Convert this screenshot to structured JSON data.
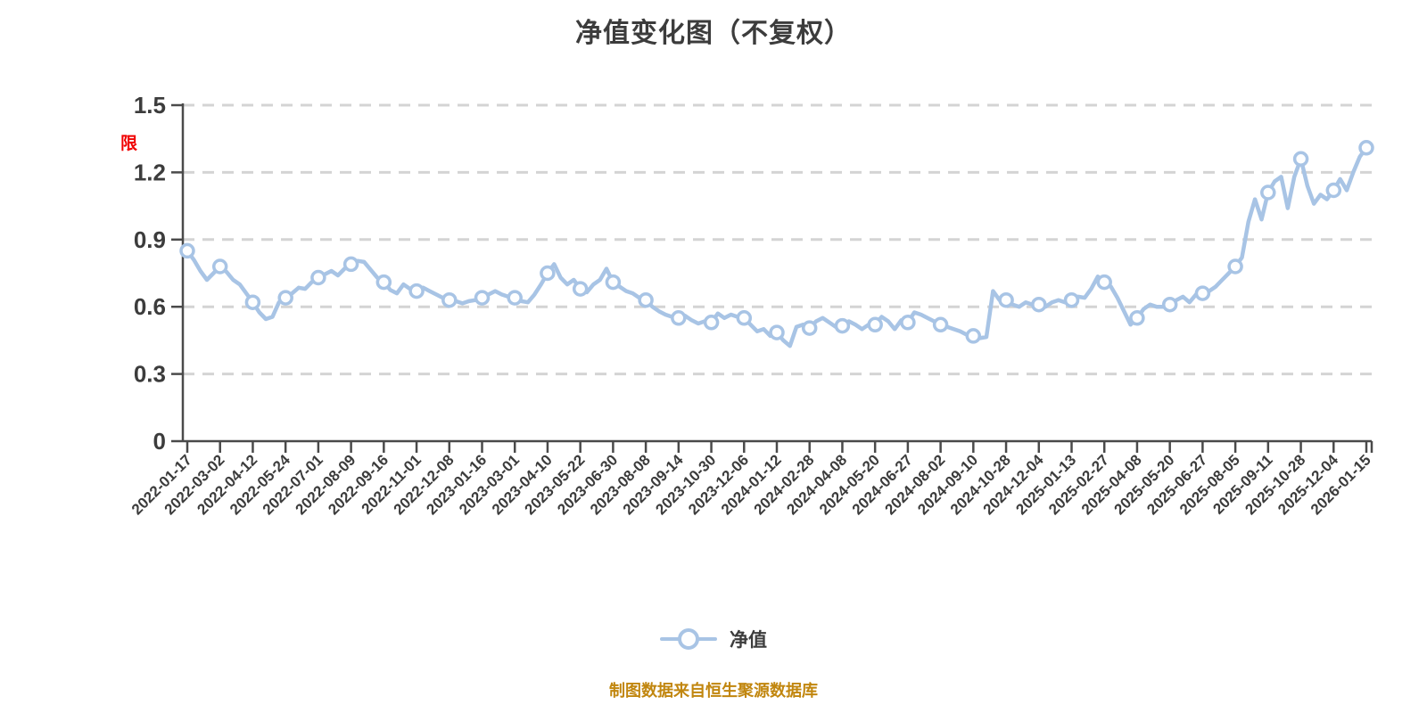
{
  "page": {
    "title": "净值变化图（不复权）",
    "red_annotation": "限",
    "footer_note": "制图数据来自恒生聚源数据库"
  },
  "legend": {
    "items": [
      {
        "label": "净值"
      }
    ]
  },
  "colors": {
    "line": "#a8c4e5",
    "marker_fill": "#fdfeff",
    "grid": "#d4d4d4",
    "axis": "#4a4a4a",
    "text": "#3c3c3c",
    "footer": "#c1860e",
    "annotation": "#f00000",
    "background": "#ffffff"
  },
  "chart_data": {
    "type": "line",
    "title": "净值变化图（不复权）",
    "series_name": "净值",
    "legend_position": "bottom",
    "grid": "horizontal-dashed",
    "x_label_rotation": -45,
    "ylim": [
      0,
      1.5
    ],
    "y_ticks": [
      0,
      0.3,
      0.6,
      0.9,
      1.2,
      1.5
    ],
    "y_tick_labels": [
      "0",
      "0.3",
      "0.6",
      "0.9",
      "1.2",
      "1.5"
    ],
    "x_tick_labels": [
      "2022-01-17",
      "2022-03-02",
      "2022-04-12",
      "2022-05-24",
      "2022-07-01",
      "2022-08-09",
      "2022-09-16",
      "2022-11-01",
      "2022-12-08",
      "2023-01-16",
      "2023-03-01",
      "2023-04-10",
      "2023-05-22",
      "2023-06-30",
      "2023-08-08",
      "2023-09-14",
      "2023-10-30",
      "2023-12-06",
      "2024-01-12",
      "2024-02-28",
      "2024-04-08",
      "2024-05-20",
      "2024-06-27",
      "2024-08-02",
      "2024-09-10",
      "2024-10-28",
      "2024-12-04",
      "2025-01-13",
      "2025-02-27",
      "2025-04-08",
      "2025-05-20",
      "2025-06-27",
      "2025-08-05",
      "2025-09-11",
      "2025-10-28",
      "2025-12-04",
      "2026-01-15"
    ],
    "marker_every": 5,
    "values": [
      0.85,
      0.81,
      0.76,
      0.72,
      0.75,
      0.78,
      0.755,
      0.72,
      0.7,
      0.66,
      0.62,
      0.575,
      0.545,
      0.555,
      0.62,
      0.64,
      0.66,
      0.685,
      0.68,
      0.71,
      0.73,
      0.745,
      0.76,
      0.74,
      0.77,
      0.79,
      0.805,
      0.8,
      0.765,
      0.73,
      0.71,
      0.675,
      0.66,
      0.7,
      0.68,
      0.67,
      0.685,
      0.67,
      0.655,
      0.64,
      0.63,
      0.625,
      0.615,
      0.625,
      0.63,
      0.64,
      0.655,
      0.67,
      0.655,
      0.645,
      0.64,
      0.625,
      0.62,
      0.655,
      0.7,
      0.75,
      0.79,
      0.73,
      0.7,
      0.72,
      0.68,
      0.665,
      0.7,
      0.72,
      0.77,
      0.71,
      0.69,
      0.67,
      0.66,
      0.64,
      0.63,
      0.6,
      0.58,
      0.565,
      0.555,
      0.55,
      0.56,
      0.54,
      0.525,
      0.535,
      0.53,
      0.57,
      0.55,
      0.565,
      0.555,
      0.55,
      0.52,
      0.49,
      0.5,
      0.47,
      0.485,
      0.45,
      0.425,
      0.51,
      0.52,
      0.505,
      0.535,
      0.55,
      0.53,
      0.51,
      0.515,
      0.535,
      0.52,
      0.5,
      0.52,
      0.52,
      0.555,
      0.535,
      0.5,
      0.54,
      0.53,
      0.575,
      0.565,
      0.55,
      0.535,
      0.52,
      0.51,
      0.5,
      0.49,
      0.475,
      0.47,
      0.46,
      0.465,
      0.67,
      0.63,
      0.63,
      0.61,
      0.6,
      0.62,
      0.61,
      0.61,
      0.6,
      0.62,
      0.63,
      0.62,
      0.63,
      0.645,
      0.64,
      0.68,
      0.735,
      0.71,
      0.69,
      0.64,
      0.58,
      0.52,
      0.55,
      0.59,
      0.61,
      0.6,
      0.6,
      0.61,
      0.63,
      0.645,
      0.62,
      0.655,
      0.66,
      0.67,
      0.69,
      0.72,
      0.75,
      0.78,
      0.82,
      0.98,
      1.08,
      0.99,
      1.11,
      1.16,
      1.18,
      1.04,
      1.18,
      1.26,
      1.14,
      1.06,
      1.1,
      1.08,
      1.12,
      1.17,
      1.12,
      1.2,
      1.27,
      1.31
    ]
  }
}
